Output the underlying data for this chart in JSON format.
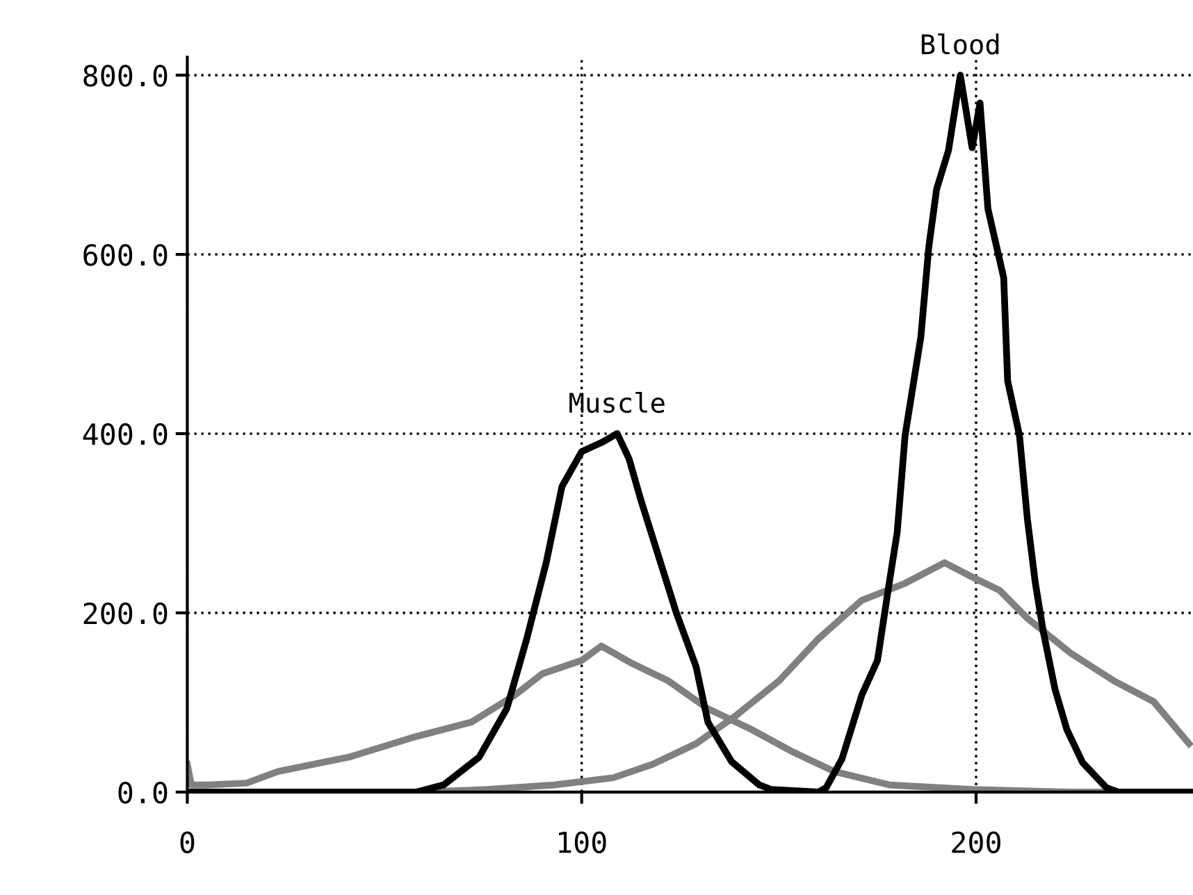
{
  "chart_data": {
    "type": "line",
    "xlim": [
      0,
      255
    ],
    "ylim": [
      0,
      820
    ],
    "xticks": [
      0,
      100,
      200
    ],
    "yticks": [
      {
        "value": 0,
        "label": "0.0"
      },
      {
        "value": 200,
        "label": "200.0"
      },
      {
        "value": 400,
        "label": "400.0"
      },
      {
        "value": 600,
        "label": "600.0"
      },
      {
        "value": 800,
        "label": "800.0"
      }
    ],
    "grid": true,
    "line_style": "solid",
    "marker": "none",
    "series": [
      {
        "color": "#808080",
        "x": [
          0,
          1,
          5,
          15,
          23,
          41,
          58,
          72,
          83,
          90,
          100,
          105,
          113,
          122,
          132,
          143,
          153,
          164,
          178,
          199,
          224,
          252
        ],
        "values": [
          31,
          8,
          8,
          10,
          23,
          39,
          62,
          78,
          108,
          132,
          147,
          163,
          143,
          124,
          93,
          70,
          46,
          23,
          8,
          3,
          0,
          0
        ]
      },
      {
        "color": "#808080",
        "x": [
          0,
          60,
          76,
          93,
          108,
          118,
          129,
          139,
          150,
          160,
          171,
          182,
          192,
          199,
          206,
          213,
          224,
          235,
          245,
          254
        ],
        "values": [
          0,
          0,
          3,
          8,
          16,
          31,
          54,
          85,
          124,
          171,
          214,
          233,
          256,
          240,
          225,
          194,
          155,
          124,
          101,
          54
        ]
      },
      {
        "color": "#000000",
        "x": [
          0,
          58,
          65,
          74,
          81,
          86,
          91,
          95,
          100,
          105,
          109,
          112,
          115,
          120,
          124,
          129,
          132,
          138,
          145,
          148,
          160
        ],
        "values": [
          0,
          0,
          8,
          39,
          93,
          170,
          256,
          341,
          380,
          390,
          400,
          372,
          326,
          256,
          200,
          140,
          78,
          34,
          8,
          3,
          0
        ]
      },
      {
        "color": "#000000",
        "x": [
          160,
          162,
          166,
          171,
          175,
          178,
          180,
          182,
          186,
          188,
          190,
          193,
          196,
          199,
          201,
          203,
          207,
          208,
          211,
          213,
          215,
          217,
          220,
          223,
          227,
          233,
          236,
          255
        ],
        "values": [
          0,
          5,
          37,
          108,
          147,
          234,
          290,
          398,
          508,
          608,
          673,
          716,
          800,
          719,
          769,
          651,
          574,
          459,
          398,
          305,
          234,
          180,
          115,
          70,
          33,
          5,
          0,
          0
        ]
      }
    ],
    "annotations": [
      {
        "text": "Muscle",
        "x": 109,
        "y": 400
      },
      {
        "text": "Blood",
        "x": 196,
        "y": 800
      }
    ]
  }
}
